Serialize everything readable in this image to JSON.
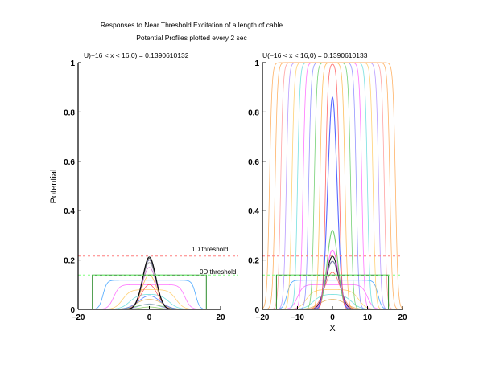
{
  "title": "Responses to Near Threshold Excitation of a length of cable",
  "subtitle": "Potential Profiles plotted every 2 sec",
  "colors": {
    "grid_1d_threshold": "#ff7f7f",
    "grid_0d_threshold": "#7fff7f",
    "axes": "#000000"
  },
  "chart_data": [
    {
      "type": "line",
      "panel": "left",
      "title": "U)−16 < x < 16,0) = 0.1390610132",
      "xlabel": "",
      "ylabel": "Potential",
      "xlim": [
        -20,
        20
      ],
      "ylim": [
        0,
        1
      ],
      "xticks": [
        "−20",
        "0",
        "20"
      ],
      "yticks": [
        "0",
        "0.2",
        "0.4",
        "0.6",
        "0.8",
        "1"
      ],
      "grid": false,
      "reference_lines": [
        {
          "y": 0.2157,
          "label": "1D threshold",
          "color": "#ff7f7f",
          "style": "dashed"
        },
        {
          "y": 0.139061,
          "label": "0D threshold",
          "color": "#7fff7f",
          "style": "dashed"
        }
      ],
      "initial_condition": {
        "x_min": -16,
        "x_max": 16,
        "value": 0.1390610132,
        "color": "#2b8a2b"
      },
      "series": [
        {
          "t": 2,
          "kind": "plateau",
          "width": 13.0,
          "edge": 1.1,
          "height": 0.118,
          "peak": 0.118,
          "sigma": 1.2,
          "color": "#3aa0ff"
        },
        {
          "t": 4,
          "kind": "plateau",
          "width": 10.0,
          "edge": 1.6,
          "height": 0.1,
          "peak": 0.1,
          "sigma": 1.3,
          "color": "#ff66ff"
        },
        {
          "t": 6,
          "kind": "plateau",
          "width": 7.5,
          "edge": 2.1,
          "height": 0.08,
          "peak": 0.08,
          "sigma": 1.4,
          "color": "#ffcc66"
        },
        {
          "t": 8,
          "kind": "plateau",
          "width": 5.5,
          "edge": 2.5,
          "height": 0.062,
          "peak": 0.062,
          "sigma": 1.5,
          "color": "#66dddd"
        },
        {
          "t": 10,
          "kind": "plateau",
          "width": 3.8,
          "edge": 2.8,
          "height": 0.046,
          "peak": 0.046,
          "sigma": 1.6,
          "color": "#ddaa55"
        },
        {
          "t": 12,
          "kind": "plateau",
          "width": 2.5,
          "edge": 3.0,
          "height": 0.032,
          "peak": 0.032,
          "sigma": 1.7,
          "color": "#b090ff"
        },
        {
          "t": 14,
          "kind": "plateau",
          "width": 1.5,
          "edge": 3.2,
          "height": 0.022,
          "peak": 0.022,
          "sigma": 1.8,
          "color": "#88cc66"
        },
        {
          "t": 16,
          "kind": "gauss",
          "peak": 0.02,
          "sigma": 3.6,
          "color": "#66cc66"
        },
        {
          "t": 18,
          "kind": "gauss",
          "peak": 0.055,
          "sigma": 3.0,
          "color": "#4477ff"
        },
        {
          "t": 20,
          "kind": "gauss",
          "peak": 0.1,
          "sigma": 2.3,
          "color": "#ff5555"
        },
        {
          "t": 22,
          "kind": "gauss",
          "peak": 0.14,
          "sigma": 2.1,
          "color": "#ffb84d"
        },
        {
          "t": 24,
          "kind": "gauss",
          "peak": 0.17,
          "sigma": 2.0,
          "color": "#cc66cc"
        },
        {
          "t": 26,
          "kind": "gauss",
          "peak": 0.19,
          "sigma": 1.95,
          "color": "#aaaaaa"
        },
        {
          "t": 28,
          "kind": "gauss",
          "peak": 0.2,
          "sigma": 1.9,
          "color": "#666699"
        },
        {
          "t": 30,
          "kind": "gauss",
          "peak": 0.207,
          "sigma": 1.85,
          "color": "#555555"
        },
        {
          "t": 32,
          "kind": "gauss",
          "peak": 0.212,
          "sigma": 1.85,
          "color": "#000000"
        }
      ]
    },
    {
      "type": "line",
      "panel": "right",
      "title": "U(−16 < x < 16,0) = 0.1390610133",
      "xlabel": "X",
      "ylabel": "",
      "xlim": [
        -20,
        20
      ],
      "ylim": [
        0,
        1
      ],
      "xticks": [
        "−20",
        "−10",
        "0",
        "10",
        "20"
      ],
      "yticks": [
        "0",
        "0.2",
        "0.4",
        "0.6",
        "0.8",
        "1"
      ],
      "grid": false,
      "reference_lines": [
        {
          "y": 0.2157,
          "label": "",
          "color": "#ff7f7f",
          "style": "dashed"
        },
        {
          "y": 0.139061,
          "label": "",
          "color": "#7fff7f",
          "style": "dashed"
        }
      ],
      "initial_condition": {
        "x_min": -16,
        "x_max": 16,
        "value": 0.1390610133,
        "color": "#2b8a2b"
      },
      "series": [
        {
          "t": 2,
          "kind": "plateau",
          "width": 13.0,
          "edge": 1.1,
          "height": 0.118,
          "peak": 0.118,
          "sigma": 1.2,
          "color": "#3aa0ff"
        },
        {
          "t": 4,
          "kind": "plateau",
          "width": 10.0,
          "edge": 1.6,
          "height": 0.1,
          "peak": 0.1,
          "sigma": 1.3,
          "color": "#ff66ff"
        },
        {
          "t": 6,
          "kind": "plateau",
          "width": 7.5,
          "edge": 2.1,
          "height": 0.08,
          "peak": 0.08,
          "sigma": 1.4,
          "color": "#ffcc66"
        },
        {
          "t": 8,
          "kind": "plateau",
          "width": 5.5,
          "edge": 2.5,
          "height": 0.062,
          "peak": 0.062,
          "sigma": 1.5,
          "color": "#66dddd"
        },
        {
          "t": 10,
          "kind": "plateau",
          "width": 3.8,
          "edge": 2.8,
          "height": 0.046,
          "peak": 0.046,
          "sigma": 1.6,
          "color": "#ddaa55"
        },
        {
          "t": 12,
          "kind": "gauss",
          "peak": 0.15,
          "sigma": 2.2,
          "color": "#ff5555"
        },
        {
          "t": 14,
          "kind": "gauss",
          "peak": 0.195,
          "sigma": 1.9,
          "color": "#666699"
        },
        {
          "t": 16,
          "kind": "gauss",
          "peak": 0.215,
          "sigma": 1.8,
          "color": "#000000"
        },
        {
          "t": 18,
          "kind": "gauss",
          "peak": 0.24,
          "sigma": 1.7,
          "color": "#ff66ff"
        },
        {
          "t": 20,
          "kind": "gauss",
          "peak": 0.32,
          "sigma": 1.5,
          "color": "#66cc66"
        },
        {
          "t": 22,
          "kind": "gauss",
          "peak": 0.86,
          "sigma": 1.3,
          "color": "#4455ff"
        },
        {
          "t": 24,
          "kind": "plateau",
          "width": 2.0,
          "edge": 0.7,
          "height": 1.0,
          "peak": 1.0,
          "sigma": 1.0,
          "color": "#ff5555"
        },
        {
          "t": 26,
          "kind": "plateau",
          "width": 3.6,
          "edge": 0.7,
          "height": 1.0,
          "peak": 1.0,
          "sigma": 1.0,
          "color": "#ffb84d"
        },
        {
          "t": 28,
          "kind": "plateau",
          "width": 5.2,
          "edge": 0.7,
          "height": 1.0,
          "peak": 1.0,
          "sigma": 1.0,
          "color": "#66cc66"
        },
        {
          "t": 30,
          "kind": "plateau",
          "width": 6.8,
          "edge": 0.7,
          "height": 1.0,
          "peak": 1.0,
          "sigma": 1.0,
          "color": "#8888ff"
        },
        {
          "t": 32,
          "kind": "plateau",
          "width": 8.4,
          "edge": 0.7,
          "height": 1.0,
          "peak": 1.0,
          "sigma": 1.0,
          "color": "#ff66ff"
        },
        {
          "t": 34,
          "kind": "plateau",
          "width": 10.0,
          "edge": 0.7,
          "height": 1.0,
          "peak": 1.0,
          "sigma": 1.0,
          "color": "#66dddd"
        },
        {
          "t": 36,
          "kind": "plateau",
          "width": 11.6,
          "edge": 0.7,
          "height": 1.0,
          "peak": 1.0,
          "sigma": 1.0,
          "color": "#ffcc66"
        },
        {
          "t": 38,
          "kind": "plateau",
          "width": 13.2,
          "edge": 0.7,
          "height": 1.0,
          "peak": 1.0,
          "sigma": 1.0,
          "color": "#b090ff"
        },
        {
          "t": 40,
          "kind": "plateau",
          "width": 14.8,
          "edge": 0.7,
          "height": 1.0,
          "peak": 1.0,
          "sigma": 1.0,
          "color": "#ff9999"
        },
        {
          "t": 42,
          "kind": "plateau",
          "width": 16.4,
          "edge": 0.7,
          "height": 1.0,
          "peak": 1.0,
          "sigma": 1.0,
          "color": "#ffaa55"
        },
        {
          "t": 44,
          "kind": "plateau",
          "width": 18.0,
          "edge": 0.7,
          "height": 1.0,
          "peak": 1.0,
          "sigma": 1.0,
          "color": "#ffaa55"
        }
      ]
    }
  ]
}
